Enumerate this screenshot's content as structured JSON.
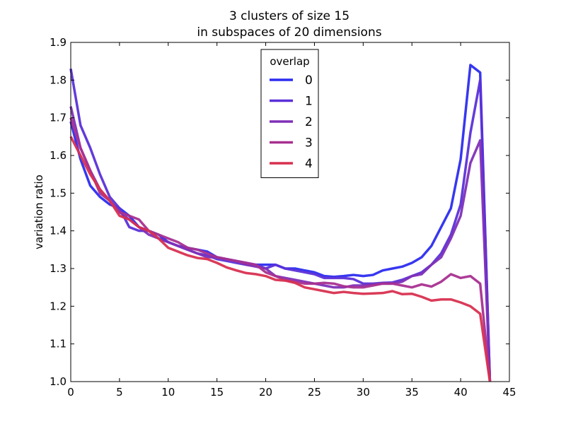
{
  "chart_data": {
    "type": "line",
    "title": [
      "3 clusters of size 15",
      "in subspaces of 20 dimensions"
    ],
    "xlabel": "",
    "ylabel": "variation ratio",
    "xlim": [
      0,
      45
    ],
    "ylim": [
      1.0,
      1.9
    ],
    "xticks": [
      0,
      5,
      10,
      15,
      20,
      25,
      30,
      35,
      40,
      45
    ],
    "yticks": [
      1.0,
      1.1,
      1.2,
      1.3,
      1.4,
      1.5,
      1.6,
      1.7,
      1.8,
      1.9
    ],
    "grid": false,
    "legend": {
      "title": "overlap",
      "position": "upper-center"
    },
    "x": [
      0,
      1,
      2,
      3,
      4,
      5,
      6,
      7,
      8,
      9,
      10,
      11,
      12,
      13,
      14,
      15,
      16,
      17,
      18,
      19,
      20,
      21,
      22,
      23,
      24,
      25,
      26,
      27,
      28,
      29,
      30,
      31,
      32,
      33,
      34,
      35,
      36,
      37,
      38,
      39,
      40,
      41,
      42,
      43
    ],
    "series": [
      {
        "name": "0",
        "color": "#2c2cf0",
        "values": [
          1.69,
          1.59,
          1.52,
          1.49,
          1.47,
          1.46,
          1.44,
          1.41,
          1.4,
          1.39,
          1.37,
          1.36,
          1.355,
          1.35,
          1.345,
          1.33,
          1.325,
          1.32,
          1.315,
          1.31,
          1.31,
          1.31,
          1.3,
          1.3,
          1.295,
          1.29,
          1.28,
          1.278,
          1.28,
          1.283,
          1.28,
          1.283,
          1.295,
          1.3,
          1.305,
          1.315,
          1.33,
          1.36,
          1.41,
          1.46,
          1.59,
          1.84,
          1.82,
          1.0
        ]
      },
      {
        "name": "1",
        "color": "#5b30d8",
        "values": [
          1.83,
          1.68,
          1.62,
          1.55,
          1.49,
          1.46,
          1.41,
          1.4,
          1.4,
          1.38,
          1.37,
          1.36,
          1.35,
          1.34,
          1.335,
          1.325,
          1.32,
          1.315,
          1.31,
          1.31,
          1.3,
          1.31,
          1.3,
          1.295,
          1.29,
          1.285,
          1.275,
          1.275,
          1.275,
          1.272,
          1.26,
          1.26,
          1.262,
          1.263,
          1.27,
          1.28,
          1.29,
          1.31,
          1.34,
          1.39,
          1.47,
          1.66,
          1.8,
          1.0
        ]
      },
      {
        "name": "2",
        "color": "#8030b8",
        "values": [
          1.73,
          1.62,
          1.56,
          1.51,
          1.48,
          1.45,
          1.43,
          1.41,
          1.39,
          1.38,
          1.37,
          1.36,
          1.35,
          1.34,
          1.33,
          1.33,
          1.325,
          1.32,
          1.31,
          1.305,
          1.3,
          1.28,
          1.275,
          1.27,
          1.265,
          1.26,
          1.255,
          1.25,
          1.25,
          1.255,
          1.255,
          1.258,
          1.26,
          1.26,
          1.265,
          1.28,
          1.285,
          1.31,
          1.33,
          1.38,
          1.44,
          1.58,
          1.64,
          1.0
        ]
      },
      {
        "name": "3",
        "color": "#a83090",
        "values": [
          1.7,
          1.62,
          1.56,
          1.5,
          1.48,
          1.45,
          1.44,
          1.43,
          1.4,
          1.39,
          1.38,
          1.37,
          1.355,
          1.35,
          1.34,
          1.33,
          1.325,
          1.32,
          1.315,
          1.31,
          1.29,
          1.28,
          1.27,
          1.265,
          1.26,
          1.26,
          1.262,
          1.26,
          1.253,
          1.25,
          1.25,
          1.255,
          1.26,
          1.26,
          1.255,
          1.25,
          1.258,
          1.252,
          1.265,
          1.285,
          1.275,
          1.28,
          1.26,
          1.0
        ]
      },
      {
        "name": "4",
        "color": "#d83050",
        "values": [
          1.65,
          1.6,
          1.55,
          1.51,
          1.48,
          1.44,
          1.43,
          1.41,
          1.4,
          1.38,
          1.355,
          1.345,
          1.335,
          1.328,
          1.325,
          1.315,
          1.303,
          1.295,
          1.288,
          1.285,
          1.28,
          1.27,
          1.268,
          1.262,
          1.25,
          1.245,
          1.24,
          1.235,
          1.238,
          1.235,
          1.233,
          1.234,
          1.235,
          1.24,
          1.232,
          1.233,
          1.225,
          1.215,
          1.218,
          1.218,
          1.21,
          1.2,
          1.18,
          1.0
        ]
      }
    ]
  }
}
